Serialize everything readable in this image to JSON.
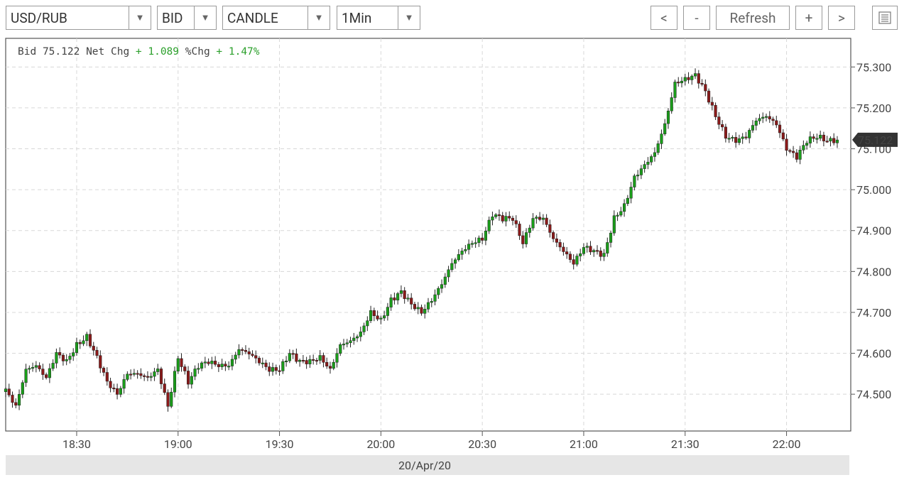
{
  "toolbar": {
    "symbol": "USD/RUB",
    "price_type": "BID",
    "chart_style": "CANDLE",
    "interval": "1Min",
    "prev_label": "<",
    "zoom_out_label": "-",
    "refresh_label": "Refresh",
    "zoom_in_label": "+",
    "next_label": ">",
    "menu_icon": "list-icon"
  },
  "info": {
    "bid_label": "Bid",
    "bid_value": "75.122",
    "netchg_label": "Net Chg",
    "netchg_value": "+ 1.089",
    "pctchg_label": "%Chg",
    "pctchg_value": "+ 1.47%"
  },
  "colors": {
    "up": "#1a9e1a",
    "down": "#8b1a1a",
    "positive_text": "#2ca02c",
    "wick": "#222222",
    "last_price_tag": "#333333"
  },
  "chart_data": {
    "type": "candlestick",
    "x_tick_labels": [
      "18:30",
      "19:00",
      "19:30",
      "20:00",
      "20:30",
      "21:00",
      "21:30",
      "22:00"
    ],
    "y_tick_labels": [
      "74.500",
      "74.600",
      "74.700",
      "74.800",
      "74.900",
      "75.000",
      "75.100",
      "75.200",
      "75.300"
    ],
    "ylim": [
      74.41,
      75.37
    ],
    "xlim": [
      "18:09",
      "22:19"
    ],
    "date_label": "20/Apr/20",
    "last_price_label": "75.122",
    "last_price": 75.122,
    "grid": true,
    "closes_path": [
      [
        "18:09",
        74.51
      ],
      [
        "18:12",
        74.47
      ],
      [
        "18:15",
        74.56
      ],
      [
        "18:18",
        74.57
      ],
      [
        "18:21",
        74.54
      ],
      [
        "18:24",
        74.6
      ],
      [
        "18:27",
        74.58
      ],
      [
        "18:30",
        74.62
      ],
      [
        "18:33",
        74.64
      ],
      [
        "18:36",
        74.59
      ],
      [
        "18:39",
        74.53
      ],
      [
        "18:42",
        74.5
      ],
      [
        "18:45",
        74.55
      ],
      [
        "18:48",
        74.55
      ],
      [
        "18:51",
        74.54
      ],
      [
        "18:54",
        74.56
      ],
      [
        "18:57",
        74.47
      ],
      [
        "19:00",
        74.59
      ],
      [
        "19:03",
        74.53
      ],
      [
        "19:06",
        74.57
      ],
      [
        "19:09",
        74.58
      ],
      [
        "19:12",
        74.57
      ],
      [
        "19:15",
        74.57
      ],
      [
        "19:18",
        74.61
      ],
      [
        "19:21",
        74.6
      ],
      [
        "19:24",
        74.58
      ],
      [
        "19:27",
        74.56
      ],
      [
        "19:30",
        74.56
      ],
      [
        "19:33",
        74.6
      ],
      [
        "19:36",
        74.58
      ],
      [
        "19:39",
        74.58
      ],
      [
        "19:42",
        74.59
      ],
      [
        "19:45",
        74.56
      ],
      [
        "19:48",
        74.62
      ],
      [
        "19:51",
        74.63
      ],
      [
        "19:54",
        74.65
      ],
      [
        "19:57",
        74.7
      ],
      [
        "20:00",
        74.68
      ],
      [
        "20:03",
        74.73
      ],
      [
        "20:06",
        74.75
      ],
      [
        "20:09",
        74.72
      ],
      [
        "20:12",
        74.7
      ],
      [
        "20:15",
        74.73
      ],
      [
        "20:18",
        74.77
      ],
      [
        "20:21",
        74.82
      ],
      [
        "20:24",
        74.85
      ],
      [
        "20:27",
        74.87
      ],
      [
        "20:30",
        74.88
      ],
      [
        "20:33",
        74.94
      ],
      [
        "20:36",
        74.93
      ],
      [
        "20:39",
        74.93
      ],
      [
        "20:42",
        74.87
      ],
      [
        "20:45",
        74.93
      ],
      [
        "20:48",
        74.93
      ],
      [
        "20:51",
        74.88
      ],
      [
        "20:54",
        74.85
      ],
      [
        "20:57",
        74.82
      ],
      [
        "21:00",
        74.86
      ],
      [
        "21:03",
        74.85
      ],
      [
        "21:06",
        74.84
      ],
      [
        "21:09",
        74.93
      ],
      [
        "21:12",
        74.96
      ],
      [
        "21:15",
        75.03
      ],
      [
        "21:18",
        75.06
      ],
      [
        "21:21",
        75.09
      ],
      [
        "21:24",
        75.16
      ],
      [
        "21:27",
        75.26
      ],
      [
        "21:30",
        75.27
      ],
      [
        "21:33",
        75.28
      ],
      [
        "21:36",
        75.24
      ],
      [
        "21:39",
        75.18
      ],
      [
        "21:42",
        75.13
      ],
      [
        "21:45",
        75.12
      ],
      [
        "21:48",
        75.13
      ],
      [
        "21:51",
        75.17
      ],
      [
        "21:54",
        75.18
      ],
      [
        "21:57",
        75.16
      ],
      [
        "22:00",
        75.1
      ],
      [
        "22:03",
        75.08
      ],
      [
        "22:06",
        75.12
      ],
      [
        "22:09",
        75.13
      ],
      [
        "22:12",
        75.12
      ],
      [
        "22:15",
        75.12
      ]
    ]
  }
}
